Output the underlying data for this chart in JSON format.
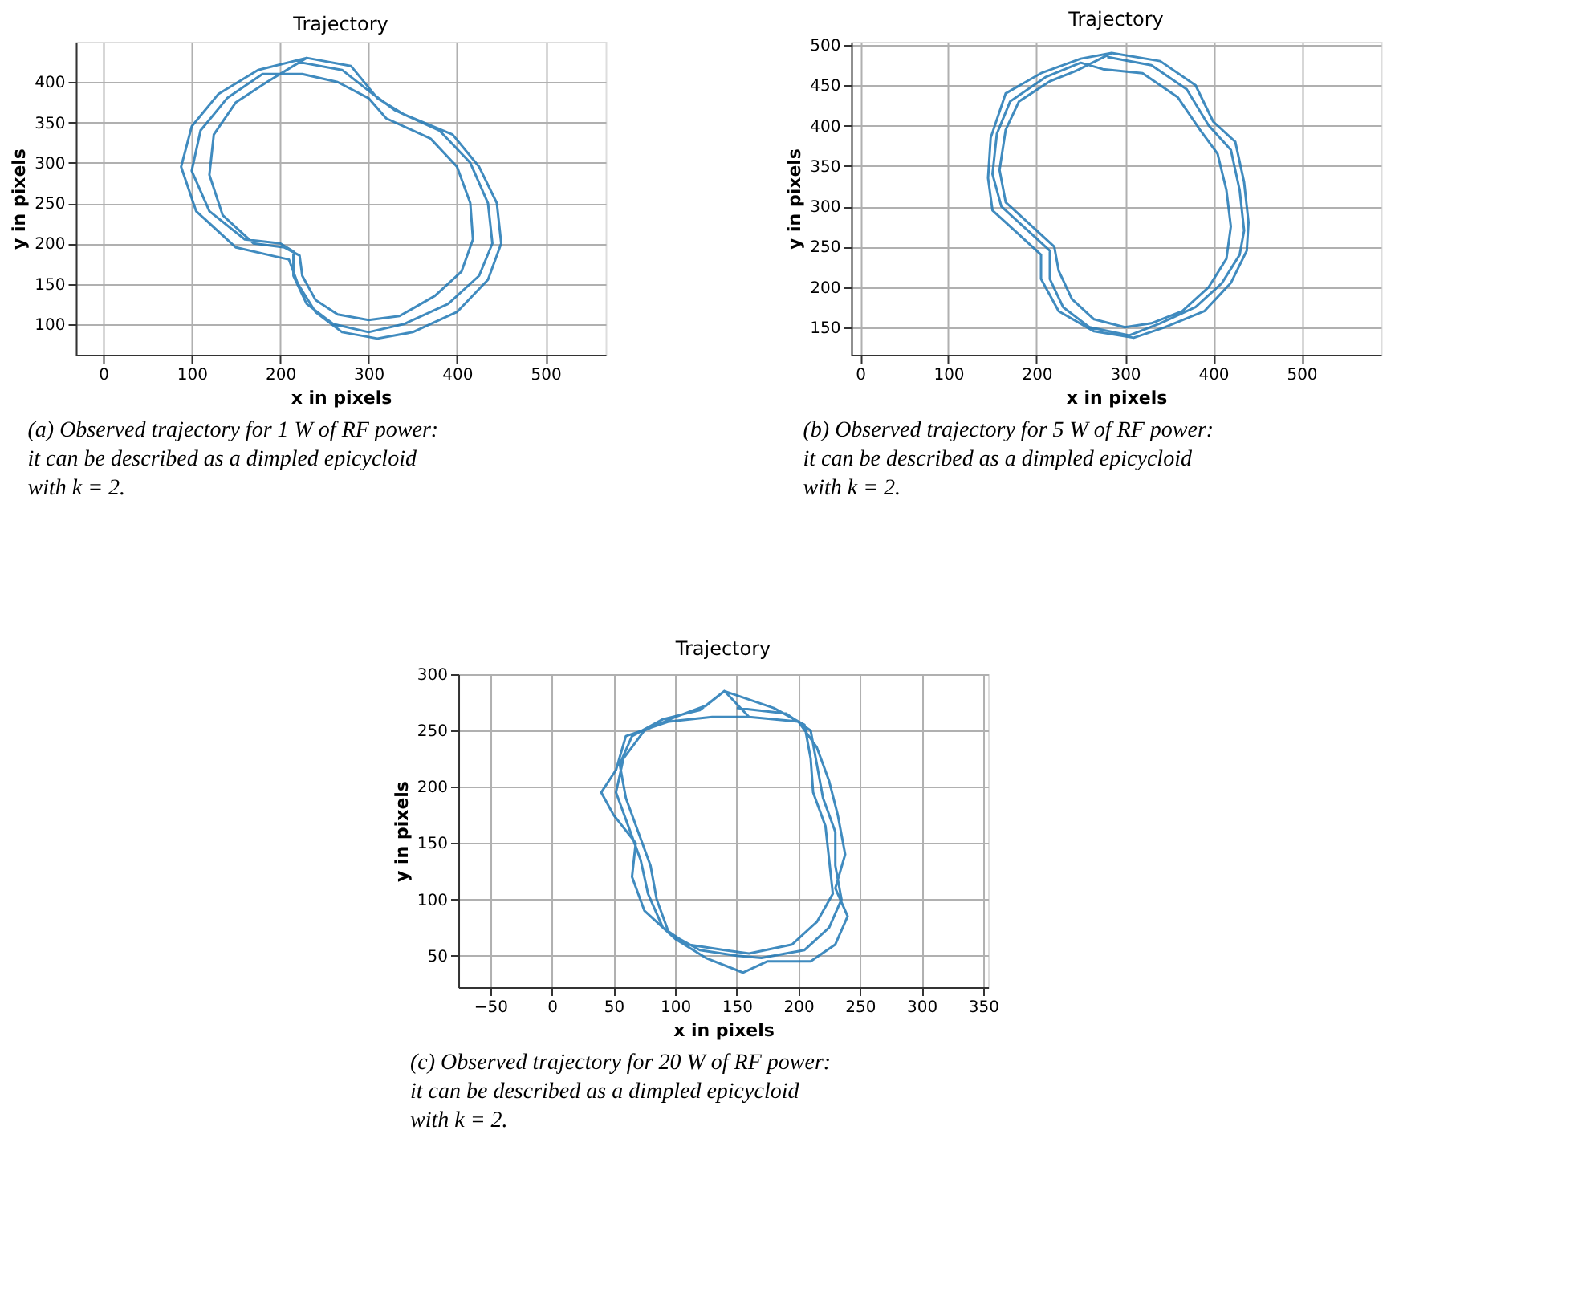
{
  "chart_data": [
    {
      "type": "line",
      "title": "Trajectory",
      "xlabel": "x in pixels",
      "ylabel": "y in pixels",
      "annotations": [
        "(a) Observed trajectory for 1 W of RF power: it can be described as a dimpled epicycloid with k = 2."
      ],
      "xlim": [
        -31,
        568
      ],
      "ylim": [
        62,
        450
      ],
      "xticks": [
        0,
        100,
        200,
        300,
        400,
        500
      ],
      "yticks": [
        100,
        150,
        200,
        250,
        300,
        350,
        400
      ],
      "grid": true,
      "series": [
        {
          "color": "#1f77b4",
          "x": [
            220,
            270,
            305,
            330,
            380,
            415,
            435,
            440,
            425,
            390,
            340,
            300,
            260,
            230,
            215,
            215,
            200,
            160,
            120,
            100,
            110,
            140,
            180,
            225,
            265,
            300,
            320,
            370,
            400,
            415,
            418,
            405,
            375,
            335,
            300,
            265,
            240,
            225,
            222,
            205,
            170,
            135,
            120,
            125,
            150,
            185,
            230,
            280,
            310,
            340,
            395,
            425,
            445,
            450,
            435,
            400,
            350,
            310,
            270,
            240,
            220,
            210,
            190,
            150,
            105,
            88,
            100,
            130,
            175,
            230
          ],
          "values": [
            425,
            415,
            385,
            365,
            340,
            300,
            250,
            200,
            160,
            125,
            100,
            90,
            100,
            125,
            160,
            190,
            200,
            205,
            240,
            290,
            340,
            380,
            410,
            410,
            400,
            380,
            355,
            330,
            295,
            250,
            205,
            165,
            135,
            110,
            105,
            112,
            130,
            160,
            185,
            195,
            200,
            235,
            285,
            335,
            375,
            400,
            430,
            420,
            380,
            360,
            335,
            295,
            250,
            200,
            155,
            115,
            90,
            82,
            90,
            115,
            150,
            180,
            185,
            195,
            240,
            295,
            345,
            385,
            415,
            430
          ]
        }
      ]
    },
    {
      "type": "line",
      "title": "Trajectory",
      "xlabel": "x in pixels",
      "ylabel": "y in pixels",
      "annotations": [
        "(b) Observed trajectory for 5 W of RF power: it can be described as a dimpled epicycloid with k = 2."
      ],
      "xlim": [
        -10,
        590
      ],
      "ylim": [
        116,
        504
      ],
      "xticks": [
        0,
        100,
        200,
        300,
        400,
        500
      ],
      "yticks": [
        150,
        200,
        250,
        300,
        350,
        400,
        450,
        500
      ],
      "grid": true,
      "series": [
        {
          "color": "#1f77b4",
          "x": [
            280,
            330,
            370,
            395,
            420,
            430,
            435,
            430,
            410,
            380,
            340,
            305,
            260,
            230,
            215,
            215,
            190,
            160,
            150,
            155,
            170,
            210,
            250,
            275,
            320,
            360,
            385,
            405,
            415,
            420,
            415,
            395,
            365,
            330,
            300,
            265,
            240,
            225,
            220,
            195,
            165,
            158,
            165,
            180,
            215,
            245,
            285,
            340,
            380,
            400,
            425,
            435,
            440,
            438,
            420,
            390,
            345,
            310,
            265,
            225,
            205,
            205,
            180,
            150,
            145,
            148,
            165,
            205,
            250,
            285
          ],
          "values": [
            485,
            475,
            445,
            400,
            370,
            320,
            270,
            240,
            205,
            175,
            155,
            140,
            150,
            175,
            210,
            245,
            270,
            300,
            340,
            390,
            430,
            460,
            478,
            470,
            465,
            435,
            395,
            365,
            320,
            275,
            235,
            200,
            170,
            155,
            150,
            160,
            185,
            220,
            250,
            275,
            305,
            345,
            395,
            430,
            455,
            468,
            490,
            480,
            450,
            405,
            380,
            330,
            280,
            245,
            205,
            170,
            150,
            137,
            145,
            170,
            210,
            240,
            265,
            295,
            335,
            385,
            440,
            465,
            483,
            490
          ]
        }
      ]
    },
    {
      "type": "line",
      "title": "Trajectory",
      "xlabel": "x in pixels",
      "ylabel": "y in pixels",
      "annotations": [
        "(c) Observed trajectory for 20 W of RF power: it can be described as a dimpled epicycloid with k = 2."
      ],
      "xlim": [
        -76,
        354
      ],
      "ylim": [
        22,
        300
      ],
      "xticks": [
        -50,
        0,
        50,
        100,
        150,
        200,
        250,
        300,
        350
      ],
      "yticks": [
        50,
        100,
        150,
        200,
        250,
        300
      ],
      "grid": true,
      "series": [
        {
          "color": "#1f77b4",
          "x": [
            150,
            190,
            210,
            215,
            220,
            230,
            230,
            235,
            225,
            205,
            170,
            150,
            120,
            95,
            85,
            80,
            70,
            60,
            55,
            65,
            90,
            120,
            140,
            180,
            205,
            210,
            212,
            222,
            225,
            228,
            215,
            195,
            160,
            140,
            110,
            90,
            78,
            72,
            62,
            52,
            58,
            75,
            100,
            125,
            140,
            160,
            200,
            215,
            225,
            232,
            238,
            230,
            240,
            230,
            210,
            175,
            155,
            125,
            100,
            75,
            65,
            68,
            50,
            40,
            52,
            60,
            95,
            130,
            160
          ],
          "values": [
            270,
            265,
            250,
            220,
            190,
            160,
            130,
            100,
            75,
            55,
            48,
            50,
            55,
            70,
            100,
            130,
            160,
            190,
            220,
            245,
            260,
            268,
            285,
            270,
            255,
            225,
            195,
            165,
            135,
            105,
            80,
            60,
            52,
            55,
            60,
            75,
            105,
            135,
            165,
            195,
            225,
            250,
            262,
            272,
            285,
            262,
            258,
            235,
            205,
            175,
            140,
            110,
            85,
            60,
            45,
            45,
            35,
            48,
            65,
            90,
            120,
            150,
            175,
            195,
            215,
            245,
            258,
            262,
            262
          ]
        }
      ]
    }
  ]
}
